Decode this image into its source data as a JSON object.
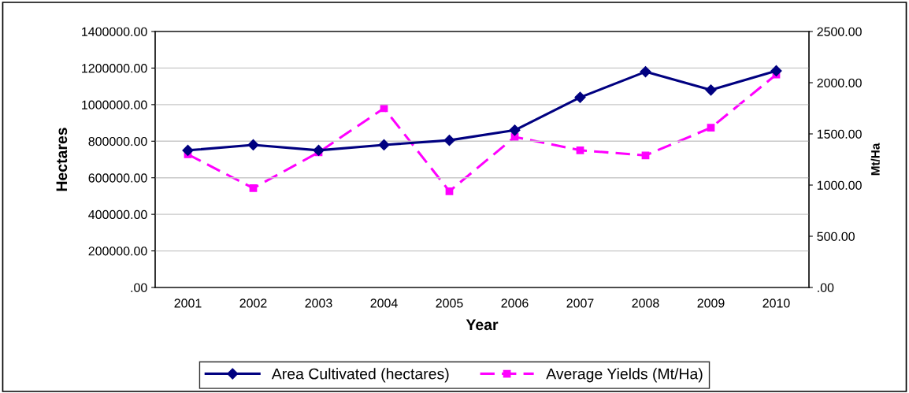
{
  "chart_data": {
    "type": "line",
    "categories": [
      "2001",
      "2002",
      "2003",
      "2004",
      "2005",
      "2006",
      "2007",
      "2008",
      "2009",
      "2010"
    ],
    "xlabel": "Year",
    "ylabel": "Hectares",
    "y2label": "Mt/Ha",
    "series": [
      {
        "name": "Area Cultivated (hectares)",
        "color": "#000080",
        "marker": "diamond",
        "line_style": "solid",
        "values": [
          750000,
          780000,
          750000,
          780000,
          805000,
          860000,
          1040000,
          1180000,
          1080000,
          1185000
        ]
      },
      {
        "name": "Average Yields (Mt/Ha)",
        "color": "#ff00ff",
        "marker": "square",
        "line_style": "dashed",
        "axis": "y2",
        "values": [
          1300,
          970,
          1320,
          1750,
          940,
          1470,
          1340,
          1290,
          1560,
          2080
        ]
      }
    ],
    "ylim": [
      0,
      1400000
    ],
    "yticks": [
      {
        "value": 0,
        "label": ".00"
      },
      {
        "value": 200000,
        "label": "200000.00"
      },
      {
        "value": 400000,
        "label": "400000.00"
      },
      {
        "value": 600000,
        "label": "600000.00"
      },
      {
        "value": 800000,
        "label": "800000.00"
      },
      {
        "value": 1000000,
        "label": "1000000.00"
      },
      {
        "value": 1200000,
        "label": "1200000.00"
      },
      {
        "value": 1400000,
        "label": "1400000.00"
      }
    ],
    "y2lim": [
      0,
      2500
    ],
    "y2ticks": [
      {
        "value": 0,
        "label": ".00"
      },
      {
        "value": 500,
        "label": "500.00"
      },
      {
        "value": 1000,
        "label": "1000.00"
      },
      {
        "value": 1500,
        "label": "1500.00"
      },
      {
        "value": 2000,
        "label": "2000.00"
      },
      {
        "value": 2500,
        "label": "2500.00"
      }
    ],
    "grid": "y",
    "legend": "bottom"
  }
}
